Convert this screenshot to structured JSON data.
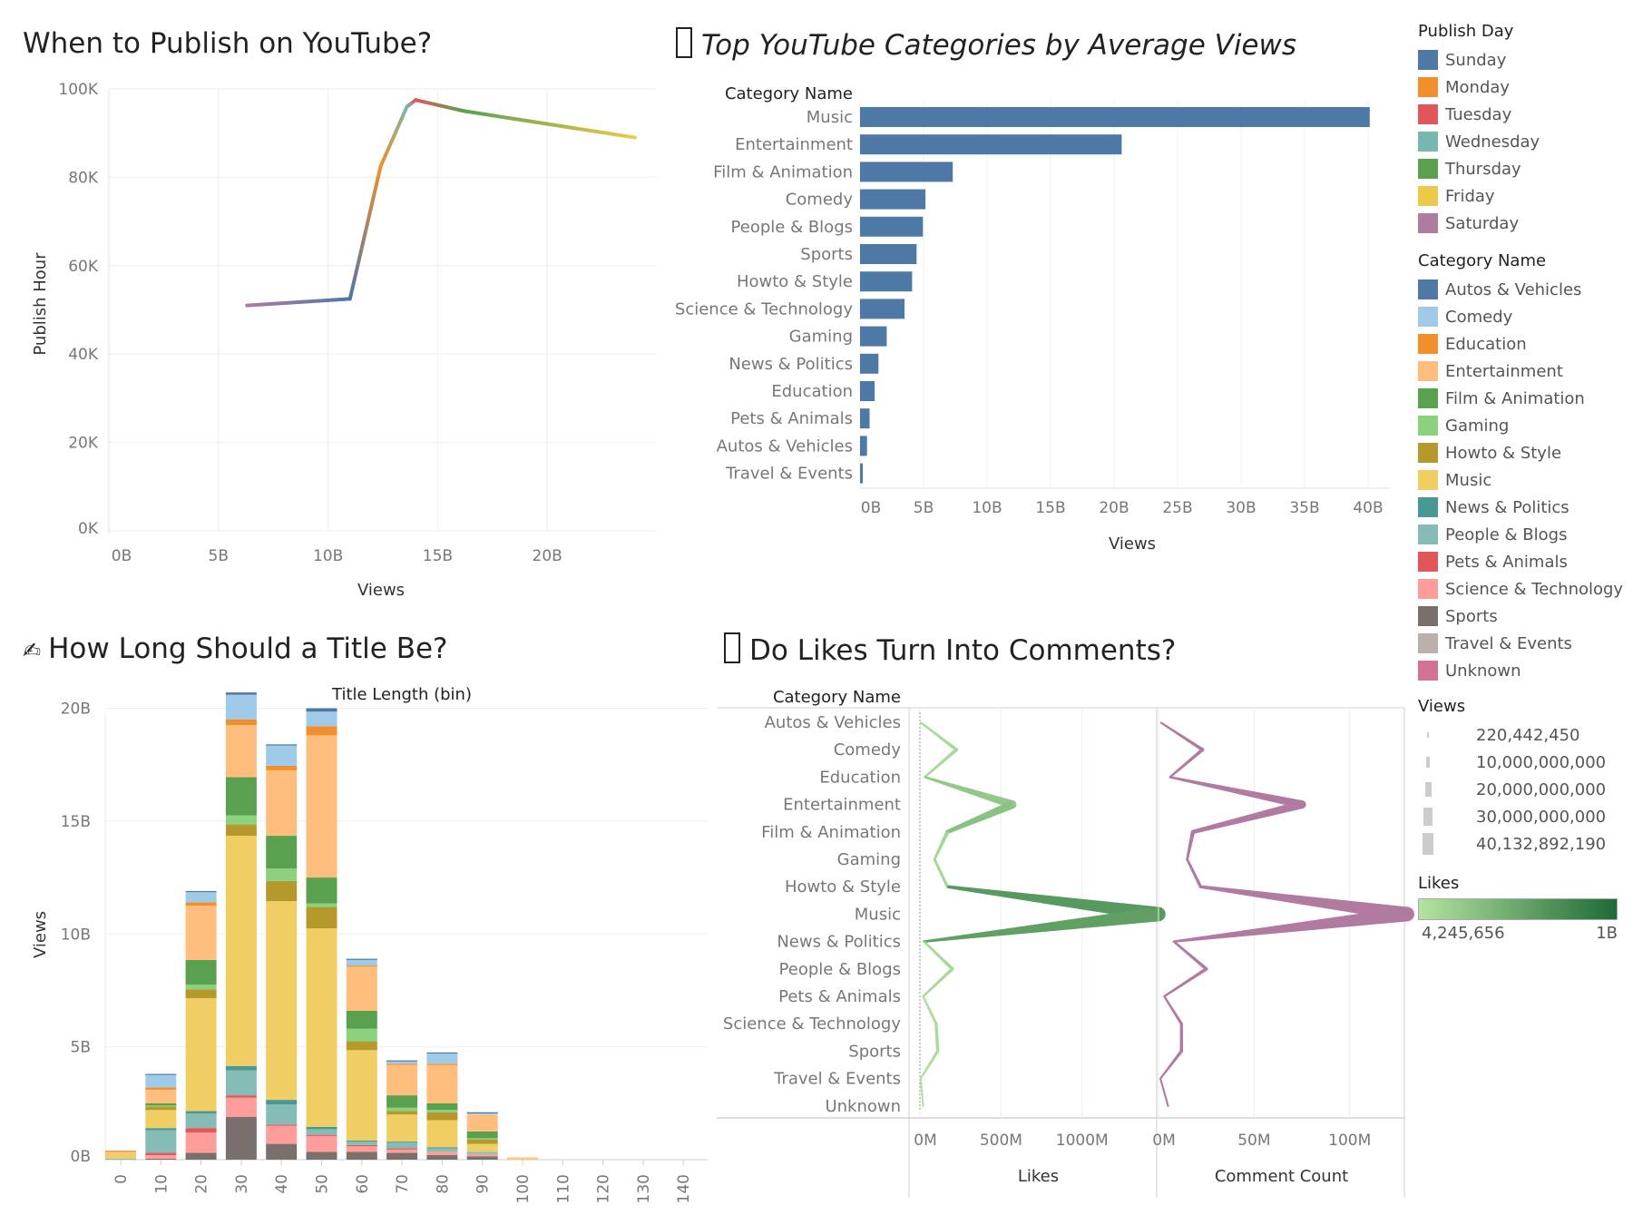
{
  "titles": {
    "publish": "When to Publish on YouTube?",
    "categories": "Top YouTube Categories by Average Views",
    "title_length": "How Long Should a Title Be?",
    "likes": "Do Likes Turn Into Comments?",
    "categories_icon": "placeholder-box-icon",
    "title_length_icon": "writing-hand-icon",
    "likes_icon": "placeholder-box-icon"
  },
  "title_prefix": {
    "title_length": "✍"
  },
  "legends": {
    "publish_day": {
      "header": "Publish Day",
      "items": [
        {
          "label": "Sunday",
          "color": "#4e79a7"
        },
        {
          "label": "Monday",
          "color": "#f28e2b"
        },
        {
          "label": "Tuesday",
          "color": "#e15759"
        },
        {
          "label": "Wednesday",
          "color": "#76b7b2"
        },
        {
          "label": "Thursday",
          "color": "#59a14f"
        },
        {
          "label": "Friday",
          "color": "#edc948"
        },
        {
          "label": "Saturday",
          "color": "#b07aa1"
        }
      ]
    },
    "category": {
      "header": "Category Name",
      "items": [
        {
          "label": "Autos & Vehicles",
          "color": "#4e79a7"
        },
        {
          "label": "Comedy",
          "color": "#a0cbe8"
        },
        {
          "label": "Education",
          "color": "#f28e2b"
        },
        {
          "label": "Entertainment",
          "color": "#ffbe7d"
        },
        {
          "label": "Film & Animation",
          "color": "#59a14f"
        },
        {
          "label": "Gaming",
          "color": "#8cd17d"
        },
        {
          "label": "Howto & Style",
          "color": "#b6992d"
        },
        {
          "label": "Music",
          "color": "#f1ce63"
        },
        {
          "label": "News & Politics",
          "color": "#499894"
        },
        {
          "label": "People & Blogs",
          "color": "#86bcb6"
        },
        {
          "label": "Pets & Animals",
          "color": "#e15759"
        },
        {
          "label": "Science & Technology",
          "color": "#ff9d9a"
        },
        {
          "label": "Sports",
          "color": "#79706e"
        },
        {
          "label": "Travel & Events",
          "color": "#bab0ac"
        },
        {
          "label": "Unknown",
          "color": "#d37295"
        }
      ]
    },
    "views": {
      "header": "Views",
      "items": [
        "220,442,450",
        "10,000,000,000",
        "20,000,000,000",
        "30,000,000,000",
        "40,132,892,190"
      ]
    },
    "likes": {
      "header": "Likes",
      "min": "4,245,656",
      "max": "1B",
      "color_low": "#b4e3a0",
      "color_high": "#1e6b36"
    }
  },
  "chart_data": [
    {
      "id": "publish",
      "type": "line",
      "xlabel": "Views",
      "ylabel": "Publish Hour",
      "xlim": [
        0,
        25
      ],
      "ylim": [
        0,
        100
      ],
      "xticks": [
        "0B",
        "5B",
        "10B",
        "15B",
        "20B"
      ],
      "yticks": [
        "0K",
        "20K",
        "40K",
        "60K",
        "80K",
        "100K"
      ],
      "points": [
        {
          "day": "Saturday",
          "x": 6.3,
          "y": 51
        },
        {
          "day": "Sunday",
          "x": 11,
          "y": 52.5
        },
        {
          "day": "Monday",
          "x": 12.4,
          "y": 82.5
        },
        {
          "day": "Wednesday",
          "x": 13.6,
          "y": 96
        },
        {
          "day": "Tuesday",
          "x": 14,
          "y": 97.5
        },
        {
          "day": "Thursday",
          "x": 16.2,
          "y": 95
        },
        {
          "day": "Friday",
          "x": 24,
          "y": 89
        }
      ]
    },
    {
      "id": "categories",
      "type": "bar",
      "orientation": "horizontal",
      "category_header": "Category Name",
      "xlabel": "Views",
      "xlim": [
        0,
        41
      ],
      "xticks": [
        "0B",
        "5B",
        "10B",
        "15B",
        "20B",
        "25B",
        "30B",
        "35B",
        "40B"
      ],
      "color": "#4e79a7",
      "categories": [
        "Music",
        "Entertainment",
        "Film & Animation",
        "Comedy",
        "People & Blogs",
        "Sports",
        "Howto & Style",
        "Science & Technology",
        "Gaming",
        "News & Politics",
        "Education",
        "Pets & Animals",
        "Autos & Vehicles",
        "Travel & Events"
      ],
      "values": [
        40.13,
        20.6,
        7.3,
        5.15,
        4.95,
        4.45,
        4.1,
        3.5,
        2.1,
        1.45,
        1.15,
        0.75,
        0.55,
        0.22
      ]
    },
    {
      "id": "title_length",
      "type": "bar",
      "stacked": true,
      "top_label": "Title Length (bin)",
      "ylabel": "Views",
      "ylim": [
        0,
        22
      ],
      "yticks": [
        "0B",
        "5B",
        "10B",
        "15B",
        "20B"
      ],
      "categories": [
        "0",
        "10",
        "20",
        "30",
        "40",
        "50",
        "60",
        "70",
        "80",
        "90",
        "100",
        "110",
        "120",
        "130",
        "140"
      ],
      "series": [
        {
          "name": "Sports",
          "color": "#79706e",
          "values": [
            0,
            0.05,
            0.3,
            1.9,
            0.7,
            0.35,
            0.35,
            0.3,
            0.2,
            0.15,
            0,
            0,
            0,
            0,
            0
          ]
        },
        {
          "name": "Science & Technology",
          "color": "#ff9d9a",
          "values": [
            0,
            0.15,
            0.9,
            0.85,
            0.8,
            0.7,
            0.25,
            0.15,
            0.15,
            0.1,
            0,
            0,
            0,
            0,
            0
          ]
        },
        {
          "name": "Pets & Animals",
          "color": "#e15759",
          "values": [
            0,
            0.1,
            0.2,
            0.1,
            0.05,
            0.05,
            0.05,
            0.05,
            0,
            0,
            0,
            0,
            0,
            0,
            0
          ]
        },
        {
          "name": "People & Blogs",
          "color": "#86bcb6",
          "values": [
            0.05,
            1,
            0.65,
            1.1,
            0.9,
            0.25,
            0.15,
            0.25,
            0.15,
            0.1,
            0,
            0,
            0,
            0,
            0
          ]
        },
        {
          "name": "News & Politics",
          "color": "#499894",
          "values": [
            0,
            0.1,
            0.1,
            0.2,
            0.2,
            0.1,
            0.05,
            0.05,
            0.05,
            0,
            0,
            0,
            0,
            0,
            0
          ]
        },
        {
          "name": "Music",
          "color": "#f1ce63",
          "values": [
            0.2,
            0.8,
            5,
            10.2,
            8.8,
            8.8,
            4,
            1.2,
            1.2,
            0.35,
            0.05,
            0,
            0,
            0,
            0
          ]
        },
        {
          "name": "Howto & Style",
          "color": "#b6992d",
          "values": [
            0,
            0.15,
            0.4,
            0.5,
            0.9,
            0.95,
            0.4,
            0.15,
            0.35,
            0.2,
            0,
            0,
            0,
            0,
            0
          ]
        },
        {
          "name": "Gaming",
          "color": "#8cd17d",
          "values": [
            0,
            0.05,
            0.2,
            0.4,
            0.55,
            0.15,
            0.55,
            0.15,
            0.1,
            0.05,
            0,
            0,
            0,
            0,
            0
          ]
        },
        {
          "name": "Film & Animation",
          "color": "#59a14f",
          "values": [
            0,
            0.1,
            1.1,
            1.7,
            1.45,
            1.15,
            0.8,
            0.55,
            0.3,
            0.3,
            0,
            0,
            0,
            0,
            0
          ]
        },
        {
          "name": "Entertainment",
          "color": "#ffbe7d",
          "values": [
            0.1,
            0.6,
            2.4,
            2.3,
            2.9,
            6.3,
            1.95,
            1.35,
            1.7,
            0.75,
            0.05,
            0,
            0,
            0,
            0
          ]
        },
        {
          "name": "Education",
          "color": "#f28e2b",
          "values": [
            0.05,
            0.1,
            0.15,
            0.25,
            0.2,
            0.4,
            0.05,
            0.05,
            0.05,
            0,
            0,
            0,
            0,
            0,
            0
          ]
        },
        {
          "name": "Comedy",
          "color": "#a0cbe8",
          "values": [
            0,
            0.55,
            0.45,
            1.1,
            0.9,
            0.65,
            0.25,
            0.1,
            0.45,
            0.05,
            0,
            0,
            0,
            0,
            0
          ]
        },
        {
          "name": "Autos & Vehicles",
          "color": "#4e79a7",
          "values": [
            0,
            0.05,
            0.05,
            0.1,
            0.05,
            0.15,
            0.05,
            0.05,
            0.05,
            0.05,
            0,
            0,
            0,
            0,
            0
          ]
        }
      ]
    },
    {
      "id": "likes",
      "type": "line",
      "category_header": "Category Name",
      "categories": [
        "Autos & Vehicles",
        "Comedy",
        "Education",
        "Entertainment",
        "Film & Animation",
        "Gaming",
        "Howto & Style",
        "Music",
        "News & Politics",
        "People & Blogs",
        "Pets & Animals",
        "Science & Technology",
        "Sports",
        "Travel & Events",
        "Unknown"
      ],
      "views": [
        0.55,
        5.15,
        1.15,
        20.6,
        7.3,
        2.1,
        4.1,
        40.13,
        1.45,
        4.95,
        0.75,
        3.5,
        4.45,
        0.22,
        0.3
      ],
      "panels": [
        {
          "xlabel": "Likes",
          "xlim": [
            0,
            1600
          ],
          "xticks": [
            "0M",
            "500M",
            "1000M"
          ],
          "color_low": "#b4e3a0",
          "color_high": "#1e6b36",
          "values": [
            4,
            225,
            30,
            570,
            170,
            90,
            170,
            1470,
            25,
            200,
            20,
            100,
            110,
            5,
            20
          ]
        },
        {
          "xlabel": "Comment Count",
          "xlim": [
            0,
            140
          ],
          "xticks": [
            "0M",
            "50M",
            "100M"
          ],
          "color": "#b07aa1",
          "values": [
            1,
            23,
            6,
            75,
            18,
            15,
            22,
            130,
            8,
            25,
            3,
            12,
            12,
            1,
            5
          ]
        }
      ]
    }
  ]
}
